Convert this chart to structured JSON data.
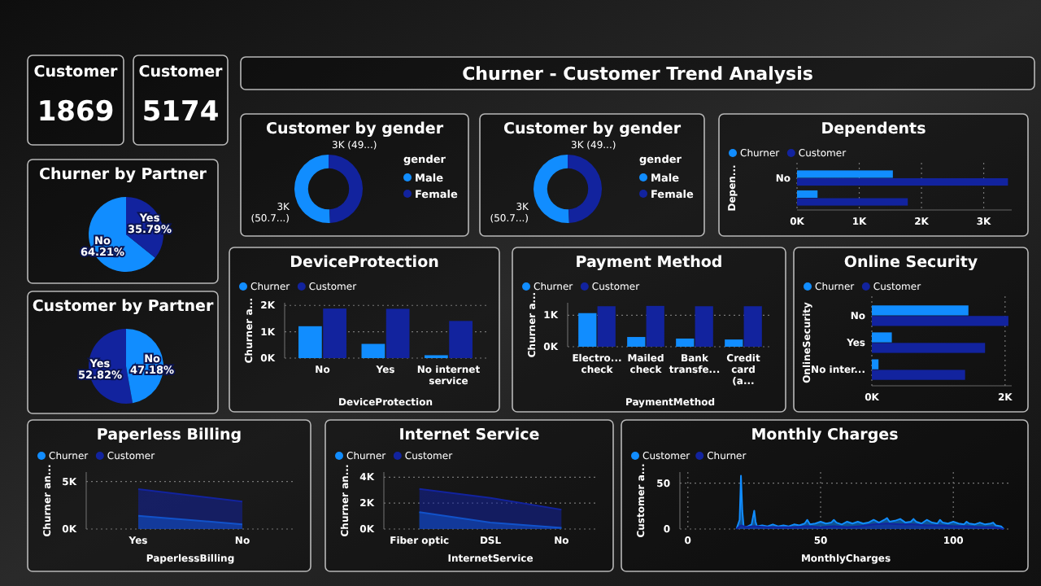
{
  "chart_data": [
    {
      "type": "other",
      "title": "Customer",
      "annotations": [
        "1869"
      ]
    },
    {
      "type": "other",
      "title": "Customer",
      "annotations": [
        "5174"
      ]
    },
    {
      "type": "other",
      "title": "Churner - Customer Trend Analysis"
    },
    {
      "type": "pie",
      "title": "Churner by Partner",
      "categories": [
        "No",
        "Yes"
      ],
      "values": [
        64.21,
        35.79
      ],
      "value_labels": [
        "64.21%",
        "35.79%"
      ],
      "colors": [
        "#118dff",
        "#12239e"
      ]
    },
    {
      "type": "donut",
      "title": "Customer by gender",
      "categories": [
        "Male",
        "Female"
      ],
      "values": [
        50.7,
        49.3
      ],
      "value_labels": [
        "3K (50.7...)",
        "3K (49...)"
      ],
      "colors": [
        "#118dff",
        "#12239e"
      ],
      "legend": "right",
      "legend_title": "gender"
    },
    {
      "type": "donut",
      "title": "Customer by gender",
      "categories": [
        "Male",
        "Female"
      ],
      "values": [
        50.7,
        49.3
      ],
      "value_labels": [
        "3K (50.7...)",
        "3K (49...)"
      ],
      "colors": [
        "#118dff",
        "#12239e"
      ],
      "legend": "right",
      "legend_title": "gender"
    },
    {
      "type": "bar",
      "orientation": "horizontal",
      "title": "Dependents",
      "categories": [
        "No",
        null
      ],
      "ylabel": "Depen...",
      "xlim": [
        0,
        3450
      ],
      "xticks": [
        {
          "value": 0,
          "label": "0K"
        },
        {
          "value": 1000,
          "label": "1K"
        },
        {
          "value": 2000,
          "label": "2K"
        },
        {
          "value": 3000,
          "label": "3K"
        }
      ],
      "grid": "x",
      "legend": "top left",
      "series": [
        {
          "name": "Churner",
          "color": "#118dff",
          "values": [
            1540,
            330
          ]
        },
        {
          "name": "Customer",
          "color": "#12239e",
          "values": [
            3390,
            1780
          ]
        }
      ]
    },
    {
      "type": "pie",
      "title": "Customer by Partner",
      "categories": [
        "Yes",
        "No"
      ],
      "values": [
        52.82,
        47.18
      ],
      "value_labels": [
        "52.82%",
        "47.18%"
      ],
      "colors": [
        "#12239e",
        "#118dff"
      ]
    },
    {
      "type": "bar",
      "title": "DeviceProtection",
      "categories": [
        "No",
        "Yes",
        "No internet service"
      ],
      "xlabel": "DeviceProtection",
      "ylabel": "Churner a...",
      "ylim": [
        0,
        2100
      ],
      "yticks": [
        {
          "value": 0,
          "label": "0K"
        },
        {
          "value": 1000,
          "label": "1K"
        },
        {
          "value": 2000,
          "label": "2K"
        }
      ],
      "grid": "y",
      "legend": "top left",
      "series": [
        {
          "name": "Churner",
          "color": "#118dff",
          "values": [
            1210,
            540,
            110
          ]
        },
        {
          "name": "Customer",
          "color": "#12239e",
          "values": [
            1880,
            1870,
            1410
          ]
        }
      ]
    },
    {
      "type": "bar",
      "title": "Payment Method",
      "categories": [
        "Electro... check",
        "Mailed check",
        "Bank transfe...",
        "Credit card (a..."
      ],
      "xlabel": "PaymentMethod",
      "ylabel": "Churner a...",
      "ylim": [
        0,
        1400
      ],
      "yticks": [
        {
          "value": 0,
          "label": "0K"
        },
        {
          "value": 1000,
          "label": "1K"
        }
      ],
      "grid": "y",
      "legend": "top left",
      "series": [
        {
          "name": "Churner",
          "color": "#118dff",
          "values": [
            1070,
            310,
            260,
            230
          ]
        },
        {
          "name": "Customer",
          "color": "#12239e",
          "values": [
            1290,
            1300,
            1290,
            1290
          ]
        }
      ]
    },
    {
      "type": "bar",
      "orientation": "horizontal",
      "title": "Online Security",
      "categories": [
        "No",
        "Yes",
        "No inter..."
      ],
      "ylabel": "OnlineSecurity",
      "xlim": [
        0,
        2100
      ],
      "xticks": [
        {
          "value": 0,
          "label": "0K"
        },
        {
          "value": 2000,
          "label": "2K"
        }
      ],
      "grid": "x",
      "legend": "top left",
      "series": [
        {
          "name": "Churner",
          "color": "#118dff",
          "values": [
            1450,
            300,
            100
          ]
        },
        {
          "name": "Customer",
          "color": "#12239e",
          "values": [
            2050,
            1700,
            1400
          ]
        }
      ]
    },
    {
      "type": "area",
      "title": "Paperless Billing",
      "categories": [
        "Yes",
        "No"
      ],
      "xlabel": "PaperlessBilling",
      "ylabel": "Churner an...",
      "ylim": [
        0,
        6000
      ],
      "yticks": [
        {
          "value": 0,
          "label": "0K"
        },
        {
          "value": 5000,
          "label": "5K"
        }
      ],
      "grid": "y",
      "legend": "top left",
      "series": [
        {
          "name": "Churner",
          "color": "#118dff",
          "values": [
            1400,
            500
          ]
        },
        {
          "name": "Customer",
          "color": "#12239e",
          "values": [
            4200,
            2900
          ]
        }
      ]
    },
    {
      "type": "area",
      "title": "Internet Service",
      "categories": [
        "Fiber optic",
        "DSL",
        "No"
      ],
      "xlabel": "InternetService",
      "ylabel": "Churner an...",
      "ylim": [
        0,
        4400
      ],
      "yticks": [
        {
          "value": 0,
          "label": "0K"
        },
        {
          "value": 2000,
          "label": "2K"
        },
        {
          "value": 4000,
          "label": "4K"
        }
      ],
      "grid": "y",
      "legend": "top left",
      "series": [
        {
          "name": "Churner",
          "color": "#118dff",
          "values": [
            1300,
            500,
            100
          ]
        },
        {
          "name": "Customer",
          "color": "#12239e",
          "values": [
            3100,
            2400,
            1500
          ]
        }
      ]
    },
    {
      "type": "area",
      "title": "Monthly Charges",
      "xlabel": "MonthlyCharges",
      "ylabel": "Customer a...",
      "xlim": [
        -3,
        122
      ],
      "ylim": [
        0,
        62
      ],
      "xticks": [
        0,
        50,
        100
      ],
      "yticks": [
        0,
        50
      ],
      "grid": true,
      "legend": "top left",
      "series": [
        {
          "name": "Customer",
          "color": "#118dff",
          "x": [
            18.3,
            19.5,
            20,
            20.5,
            21,
            22,
            24,
            25,
            25.5,
            26,
            28,
            30,
            32,
            34,
            36,
            38,
            40,
            42,
            44,
            45,
            46,
            48,
            50,
            52,
            54,
            55,
            56,
            58,
            60,
            62,
            64,
            66,
            68,
            70,
            72,
            74,
            75,
            76,
            78,
            80,
            82,
            84,
            85,
            86,
            88,
            90,
            92,
            94,
            95,
            96,
            98,
            100,
            102,
            104,
            105,
            106,
            108,
            110,
            112,
            114,
            115,
            116,
            118,
            119
          ],
          "values": [
            0,
            10,
            58,
            20,
            3,
            2,
            5,
            20,
            8,
            3,
            4,
            3,
            5,
            3,
            4,
            3,
            5,
            4,
            6,
            10,
            5,
            6,
            8,
            6,
            7,
            10,
            7,
            5,
            8,
            6,
            8,
            6,
            7,
            10,
            7,
            10,
            12,
            8,
            9,
            11,
            7,
            8,
            11,
            8,
            6,
            10,
            7,
            6,
            10,
            7,
            6,
            8,
            6,
            5,
            8,
            6,
            5,
            7,
            5,
            6,
            7,
            4,
            3,
            0
          ]
        },
        {
          "name": "Churner",
          "color": "#12239e",
          "x": [
            18.3,
            20,
            22,
            25,
            30,
            35,
            40,
            45,
            50,
            55,
            60,
            65,
            70,
            75,
            80,
            85,
            90,
            95,
            100,
            105,
            110,
            115,
            119
          ],
          "values": [
            0,
            4,
            2,
            3,
            2,
            2,
            2,
            3,
            2,
            3,
            2,
            3,
            5,
            6,
            5,
            5,
            4,
            4,
            3,
            3,
            2,
            2,
            0
          ]
        }
      ]
    }
  ]
}
